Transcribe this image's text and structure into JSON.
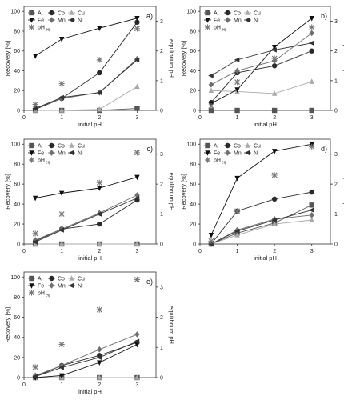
{
  "figure": {
    "legend_labels": [
      "Al",
      "Co",
      "Cu",
      "Fe",
      "Mn",
      "Ni",
      "pH",
      "eq"
    ],
    "colors": {
      "Al": "#555555",
      "Co": "#2a2a2a",
      "Cu": "#a8a8a8",
      "Fe": "#111111",
      "Mn": "#6e6e6e",
      "Ni": "#333333",
      "pH": "#777777"
    }
  },
  "chart_data": [
    {
      "panel": "a)",
      "type": "line",
      "xlabel": "initial pH",
      "ylabel": "Recovery [%]",
      "y2label": "equilibrium pH",
      "xlim": [
        0,
        3.5
      ],
      "ylim": [
        0,
        105
      ],
      "y2lim": [
        0,
        3.5
      ],
      "xticks": [
        0,
        1,
        2,
        3
      ],
      "yticks": [
        0,
        20,
        40,
        60,
        80,
        100
      ],
      "y2ticks": [
        0,
        1,
        2,
        3
      ],
      "legend_position": "top-left",
      "x": [
        0.3,
        1,
        2,
        3
      ],
      "series": [
        {
          "name": "Al",
          "values": [
            0,
            0,
            0,
            2
          ]
        },
        {
          "name": "Co",
          "values": [
            1,
            12,
            38,
            89
          ]
        },
        {
          "name": "Cu",
          "values": [
            0,
            0,
            1,
            24
          ]
        },
        {
          "name": "Fe",
          "values": [
            55,
            72,
            83,
            93
          ]
        },
        {
          "name": "Mn",
          "values": [
            2,
            12,
            18,
            52
          ]
        },
        {
          "name": "Ni",
          "values": [
            2,
            13,
            18,
            51
          ]
        }
      ],
      "ph_eq": [
        0.2,
        0.9,
        1.7,
        2.75
      ]
    },
    {
      "panel": "b)",
      "type": "line",
      "xlabel": "initial pH",
      "ylabel": "Recovery [%]",
      "y2label": "equilibrium pH",
      "xlim": [
        0,
        3.5
      ],
      "ylim": [
        0,
        105
      ],
      "y2lim": [
        0,
        3.5
      ],
      "xticks": [
        0,
        1,
        2,
        3
      ],
      "yticks": [
        0,
        20,
        40,
        60,
        80,
        100
      ],
      "y2ticks": [
        0,
        1,
        2,
        3
      ],
      "legend_position": "top-left",
      "x": [
        0.3,
        1,
        2,
        3
      ],
      "series": [
        {
          "name": "Al",
          "values": [
            0,
            0,
            0,
            0
          ]
        },
        {
          "name": "Co",
          "values": [
            8,
            38,
            45,
            60
          ]
        },
        {
          "name": "Cu",
          "values": [
            20,
            19,
            17,
            29
          ]
        },
        {
          "name": "Fe",
          "values": [
            7,
            21,
            64,
            93
          ]
        },
        {
          "name": "Mn",
          "values": [
            26,
            40,
            50,
            78
          ]
        },
        {
          "name": "Ni",
          "values": [
            35,
            51,
            61,
            68
          ]
        }
      ],
      "ph_eq": [
        0.15,
        0.95,
        1.75,
        2.8
      ]
    },
    {
      "panel": "c)",
      "type": "line",
      "xlabel": "initial pH",
      "ylabel": "Recovery [%]",
      "y2label": "equilibrium pH",
      "xlim": [
        0,
        3.5
      ],
      "ylim": [
        0,
        105
      ],
      "y2lim": [
        0,
        3.5
      ],
      "xticks": [
        0,
        1,
        2,
        3
      ],
      "yticks": [
        0,
        20,
        40,
        60,
        80,
        100
      ],
      "y2ticks": [
        0,
        1,
        2,
        3
      ],
      "legend_position": "top-left",
      "x": [
        0.3,
        1,
        2,
        3
      ],
      "series": [
        {
          "name": "Al",
          "values": [
            0,
            0,
            0,
            0
          ]
        },
        {
          "name": "Co",
          "values": [
            3,
            15,
            20,
            44
          ]
        },
        {
          "name": "Cu",
          "values": [
            0,
            0,
            0,
            0
          ]
        },
        {
          "name": "Fe",
          "values": [
            46,
            51,
            56,
            67
          ]
        },
        {
          "name": "Mn",
          "values": [
            4,
            15,
            31,
            49
          ]
        },
        {
          "name": "Ni",
          "values": [
            2,
            14,
            30,
            46
          ]
        }
      ],
      "ph_eq": [
        0.35,
        1.0,
        2.05,
        3.05
      ]
    },
    {
      "panel": "d)",
      "type": "line",
      "xlabel": "initial pH",
      "ylabel": "Recovery [%]",
      "y2label": "equilibrium pH",
      "xlim": [
        0,
        3.5
      ],
      "ylim": [
        0,
        105
      ],
      "y2lim": [
        0,
        3.5
      ],
      "xticks": [
        0,
        1,
        2,
        3
      ],
      "yticks": [
        0,
        20,
        40,
        60,
        80,
        100
      ],
      "y2ticks": [
        0,
        1,
        2,
        3
      ],
      "legend_position": "top-left",
      "x": [
        0.3,
        1,
        2,
        3
      ],
      "series": [
        {
          "name": "Al",
          "values": [
            0,
            11,
            21,
            39
          ]
        },
        {
          "name": "Co",
          "values": [
            0,
            33,
            45,
            52
          ]
        },
        {
          "name": "Cu",
          "values": [
            0,
            9,
            20,
            24
          ]
        },
        {
          "name": "Fe",
          "values": [
            9,
            66,
            93,
            100
          ]
        },
        {
          "name": "Mn",
          "values": [
            0,
            14,
            25,
            29
          ]
        },
        {
          "name": "Ni",
          "values": [
            0,
            13,
            24,
            34
          ]
        }
      ],
      "ph_eq": [
        0.1,
        1.1,
        2.3,
        3.25
      ]
    },
    {
      "panel": "e)",
      "type": "line",
      "xlabel": "initial pH",
      "ylabel": "Recovery [%]",
      "y2label": "equilibrium pH",
      "xlim": [
        0,
        3.5
      ],
      "ylim": [
        0,
        105
      ],
      "y2lim": [
        0,
        3.5
      ],
      "xticks": [
        0,
        1,
        2,
        3
      ],
      "yticks": [
        0,
        20,
        40,
        60,
        80,
        100
      ],
      "y2ticks": [
        0,
        1,
        2,
        3
      ],
      "legend_position": "top-left",
      "x": [
        0.3,
        1,
        2,
        3
      ],
      "series": [
        {
          "name": "Al",
          "values": [
            0,
            0,
            0,
            0
          ]
        },
        {
          "name": "Co",
          "values": [
            1,
            12,
            22,
            35
          ]
        },
        {
          "name": "Cu",
          "values": [
            0,
            0,
            0,
            0
          ]
        },
        {
          "name": "Fe",
          "values": [
            0,
            2,
            15,
            33
          ]
        },
        {
          "name": "Mn",
          "values": [
            2,
            12,
            28,
            43
          ]
        },
        {
          "name": "Ni",
          "values": [
            1,
            10,
            20,
            36
          ]
        }
      ],
      "ph_eq": [
        0.35,
        1.1,
        2.25,
        3.25
      ]
    }
  ]
}
